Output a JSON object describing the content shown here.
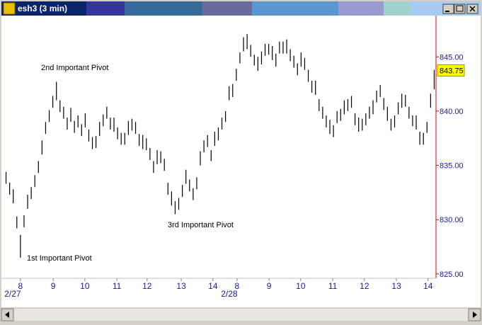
{
  "chart_data": {
    "type": "ohlc",
    "title": "esh3 (3 min)",
    "high": [
      834.4,
      833.4,
      832.8,
      830.3,
      828.6,
      830.4,
      832.3,
      833.0,
      834.1,
      835.4,
      837.3,
      839.0,
      840.1,
      841.4,
      842.7,
      841.0,
      840.4,
      839.4,
      840.3,
      839.1,
      839.6,
      838.8,
      839.8,
      838.3,
      837.6,
      837.7,
      839.0,
      839.7,
      840.4,
      839.4,
      839.4,
      838.5,
      838.0,
      838.0,
      839.1,
      839.3,
      839.0,
      837.9,
      837.8,
      837.5,
      836.6,
      835.4,
      836.4,
      836.3,
      835.6,
      833.4,
      832.6,
      831.7,
      832.0,
      833.2,
      834.6,
      833.7,
      832.9,
      833.9,
      836.3,
      837.3,
      837.8,
      836.4,
      838.1,
      838.5,
      839.4,
      840.0,
      842.3,
      842.5,
      843.9,
      845.4,
      846.8,
      847.1,
      846.1,
      845.2,
      845.0,
      845.5,
      846.2,
      846.2,
      846.0,
      845.3,
      846.4,
      846.4,
      846.6,
      845.7,
      845.1,
      844.4,
      845.4,
      844.9,
      843.8,
      842.8,
      842.8,
      841.1,
      840.4,
      839.6,
      839.2,
      838.7,
      840.0,
      840.2,
      841.0,
      841.1,
      841.4,
      839.8,
      839.4,
      839.3,
      839.8,
      840.4,
      841.0,
      841.9,
      842.4,
      841.2,
      840.4,
      839.3,
      839.6,
      840.8,
      841.6,
      841.5,
      840.4,
      839.6,
      839.6,
      838.1,
      838.0,
      839.0,
      841.6,
      843.8
    ],
    "low": [
      833.3,
      832.3,
      831.5,
      829.2,
      826.5,
      829.3,
      831.0,
      831.9,
      833.0,
      834.3,
      836.0,
      837.9,
      839.0,
      840.3,
      841.0,
      839.9,
      839.3,
      838.3,
      839.0,
      838.0,
      838.5,
      837.7,
      838.5,
      837.2,
      836.5,
      836.6,
      837.7,
      838.6,
      839.3,
      838.3,
      838.1,
      837.4,
      836.9,
      836.9,
      837.8,
      838.2,
      837.9,
      836.8,
      836.5,
      836.4,
      835.5,
      834.3,
      835.1,
      835.2,
      834.5,
      832.3,
      831.3,
      830.5,
      830.9,
      832.1,
      833.3,
      832.6,
      831.8,
      832.8,
      835.0,
      836.2,
      836.7,
      835.4,
      836.8,
      837.3,
      838.3,
      839.0,
      841.0,
      841.3,
      842.8,
      844.4,
      845.5,
      845.7,
      845.0,
      844.2,
      843.7,
      844.3,
      845.1,
      845.2,
      844.7,
      844.1,
      845.3,
      845.3,
      845.3,
      844.6,
      844.0,
      843.3,
      844.1,
      843.8,
      842.7,
      841.7,
      841.5,
      840.0,
      839.3,
      838.5,
      837.9,
      837.6,
      838.9,
      839.1,
      839.7,
      840.0,
      840.3,
      838.7,
      838.1,
      838.2,
      838.7,
      839.3,
      839.7,
      840.8,
      841.3,
      840.1,
      839.1,
      838.2,
      838.5,
      839.7,
      840.3,
      840.4,
      839.3,
      838.6,
      838.3,
      836.9,
      836.9,
      838.0,
      840.3,
      842.0
    ],
    "last_price": 843.75,
    "xlim": [
      0,
      120
    ],
    "xticks": [
      {
        "value": 4.5,
        "label": "8"
      },
      {
        "value": 13.6,
        "label": "9"
      },
      {
        "value": 22.4,
        "label": "10"
      },
      {
        "value": 31.3,
        "label": "11"
      },
      {
        "value": 39.7,
        "label": "12"
      },
      {
        "value": 49.2,
        "label": "13"
      },
      {
        "value": 58.0,
        "label": "14"
      },
      {
        "value": 64.7,
        "label": "8"
      },
      {
        "value": 73.6,
        "label": "9"
      },
      {
        "value": 82.4,
        "label": "10"
      },
      {
        "value": 91.3,
        "label": "11"
      },
      {
        "value": 100.1,
        "label": "12"
      },
      {
        "value": 109.0,
        "label": "13"
      },
      {
        "value": 117.8,
        "label": "14"
      }
    ],
    "date_labels": [
      {
        "value": 4.5,
        "label": "2/27"
      },
      {
        "value": 64.7,
        "label": "2/28"
      }
    ],
    "ylim": [
      824.6,
      848.8
    ],
    "yticks": [
      {
        "value": 825,
        "label": "825.00"
      },
      {
        "value": 830,
        "label": "830.00"
      },
      {
        "value": 835,
        "label": "835.00"
      },
      {
        "value": 840,
        "label": "840.00"
      },
      {
        "value": 845,
        "label": "845.00"
      }
    ],
    "annotations": [
      "1st Important Pivot",
      "2nd Important Pivot",
      "3rd Important Pivot"
    ]
  }
}
